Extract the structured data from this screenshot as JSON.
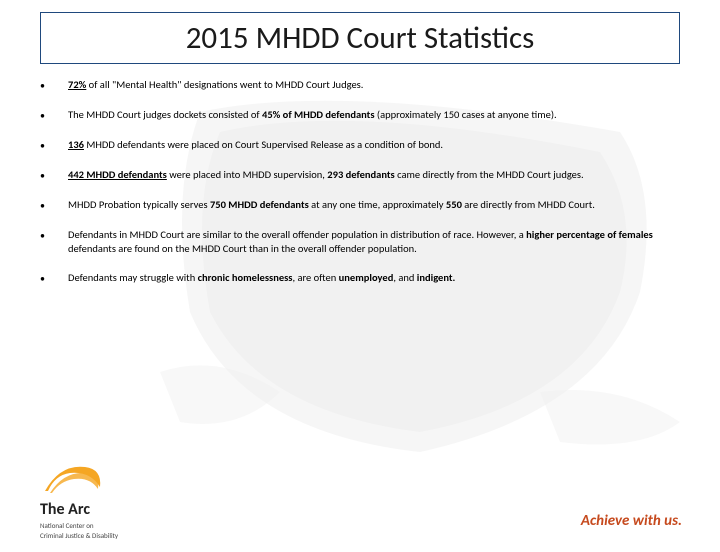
{
  "title": "2015 MHDD Court Statistics",
  "bullets": [
    {
      "html": "<u><b>72%</b></u> of  all \"Mental Health\" designations went to MHDD Court Judges."
    },
    {
      "html": "The MHDD Court judges dockets consisted of <b>45% of MHDD defendants</b> (approximately 150 cases at anyone time)."
    },
    {
      "html": "<u><b>136</b></u> MHDD defendants were placed on Court Supervised Release as a condition of bond."
    },
    {
      "html": "<u><b>442 MHDD defendants</b></u>  were placed into MHDD supervision, <b>293 defendants</b> came directly from the MHDD Court judges."
    },
    {
      "html": "MHDD Probation typically serves <b>750 MHDD defendants</b> at any one time, approximately <b>550</b> are directly from MHDD Court."
    },
    {
      "html": "Defendants in MHDD Court are similar to the overall offender population in distribution of race. However, a <b>higher percentage of females</b> defendants are found on the MHDD Court than in the overall offender population."
    },
    {
      "html": "Defendants may struggle with <b>chronic homelessness</b>, are often <b>unemployed</b>, and <b>indigent.</b>"
    }
  ],
  "logo": {
    "brand": "The Arc",
    "subline1": "National Center on",
    "subline2": "Criminal Justice & Disability",
    "swoosh_color": "#f5a623"
  },
  "tagline": "Achieve with us.",
  "colors": {
    "title_border": "#1f497d",
    "tagline": "#c64a1e",
    "brush": "#2b2b2b"
  }
}
